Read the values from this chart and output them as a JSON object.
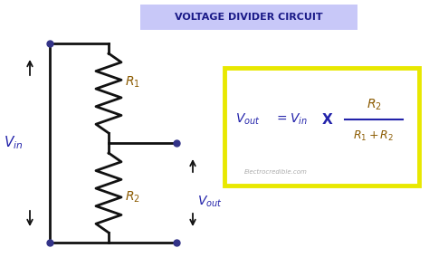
{
  "title": "VOLTAGE DIVIDER CIRCUIT",
  "title_bg": "#c8c8f8",
  "title_color": "#1a1a88",
  "bg_color": "#ffffff",
  "circuit_color": "#111111",
  "node_color": "#333388",
  "vin_color": "#2222aa",
  "r_color": "#8B5A00",
  "vout_color": "#2222aa",
  "formula_border": "#e8e800",
  "formula_bg": "#ffffff",
  "formula_color_blue": "#2222aa",
  "formula_color_brown": "#8B5A00",
  "watermark": "Electrocredible.com"
}
